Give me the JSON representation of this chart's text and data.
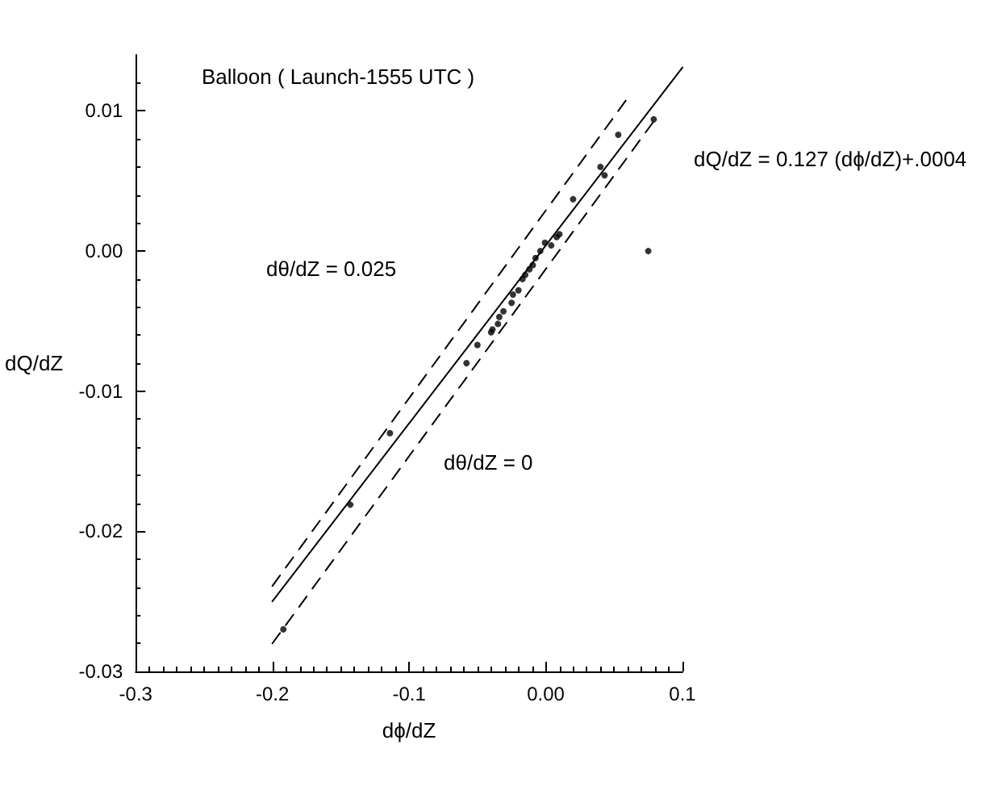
{
  "chart_data": {
    "type": "scatter",
    "title": "Balloon ( Launch-1555 UTC )",
    "xlabel": "dϕ/dZ",
    "ylabel": "dQ/dZ",
    "xlim": [
      -0.3,
      0.1
    ],
    "xticks": [
      -0.3,
      -0.2,
      -0.1,
      {
        "value": 0,
        "label": "0.00"
      },
      0.1
    ],
    "ylim": [
      -0.03,
      0.014
    ],
    "yticks": [
      -0.03,
      -0.02,
      -0.01,
      {
        "value": 0,
        "label": "0.00"
      },
      0.01
    ],
    "grid": false,
    "annotations": [
      "dθ/dZ = 0.025",
      "dθ/dZ = 0",
      "dQ/dZ = 0.127 (dϕ/dZ)+.0004"
    ],
    "series": [
      {
        "marker": "circle",
        "color": "#000000",
        "x": [
          0.053,
          0.04,
          0.043,
          0.02,
          0.075,
          0.079,
          -0.0006,
          0.004,
          0.008,
          0.01,
          -0.004,
          -0.0075,
          -0.0095,
          -0.012,
          -0.015,
          -0.017,
          -0.02,
          -0.024,
          -0.025,
          -0.031,
          -0.034,
          -0.035,
          -0.039,
          -0.04,
          -0.05,
          -0.058,
          -0.114,
          -0.143,
          -0.192
        ],
        "values": [
          0.0083,
          0.006,
          0.0054,
          0.0037,
          0.0,
          0.0094,
          0.0006,
          0.0004,
          0.001,
          0.0012,
          0.0,
          -0.0005,
          -0.001,
          -0.0013,
          -0.0017,
          -0.002,
          -0.0028,
          -0.0031,
          -0.0037,
          -0.0043,
          -0.0047,
          -0.0052,
          -0.0056,
          -0.0058,
          -0.0067,
          -0.008,
          -0.013,
          -0.0181,
          -0.027
        ]
      },
      {
        "type": "line",
        "marker": "none",
        "line_style": "solid",
        "color": "#000000",
        "x": [
          -0.2,
          0.1
        ],
        "values": [
          -0.025,
          0.0131
        ]
      },
      {
        "type": "line",
        "marker": "none",
        "line_style": "dashed",
        "color": "#000000",
        "x": [
          -0.2,
          0.059
        ],
        "values": [
          -0.0239,
          0.0108
        ]
      },
      {
        "type": "line",
        "marker": "none",
        "line_style": "dashed",
        "color": "#000000",
        "x": [
          -0.2,
          0.08
        ],
        "values": [
          -0.028,
          0.0094
        ]
      }
    ]
  }
}
